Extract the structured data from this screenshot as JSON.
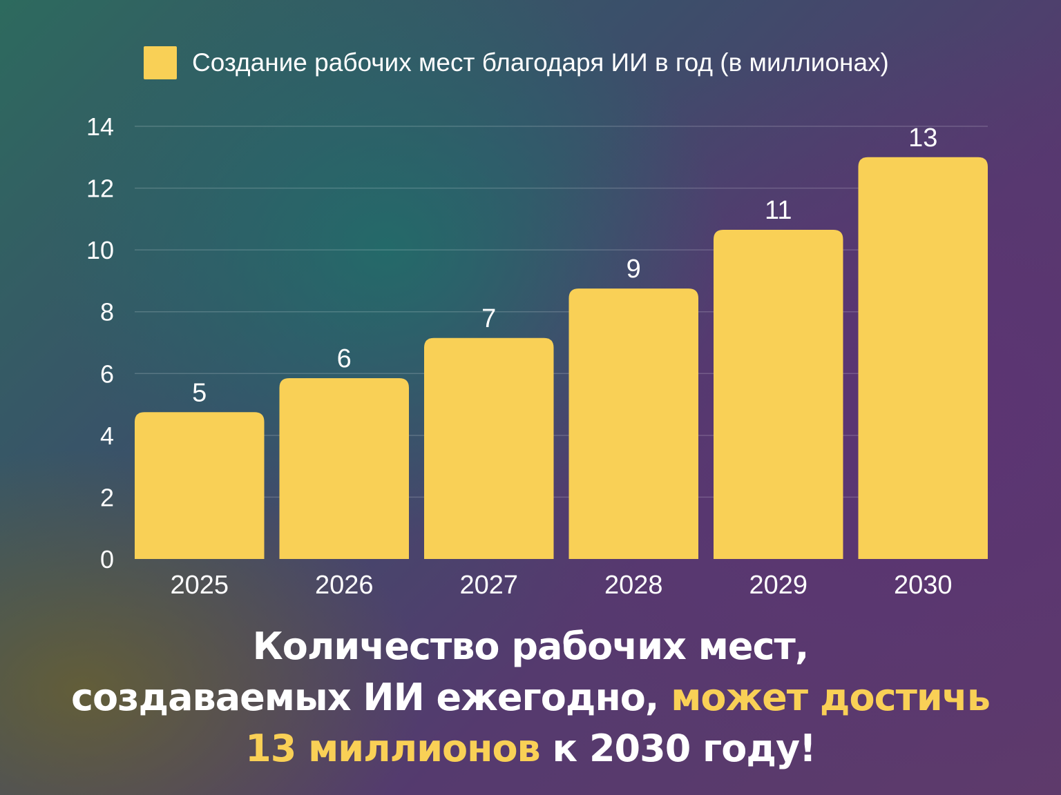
{
  "chart_data": {
    "type": "bar",
    "categories": [
      "2025",
      "2026",
      "2027",
      "2028",
      "2029",
      "2030"
    ],
    "values": [
      4.75,
      5.85,
      7.15,
      8.75,
      10.65,
      13.0
    ],
    "data_labels": [
      "5",
      "6",
      "7",
      "9",
      "11",
      "13"
    ],
    "legend": "Создание рабочих мест благодаря ИИ в год (в миллионах)",
    "legend_position": "top",
    "ylim": [
      0,
      14
    ],
    "yticks": [
      0,
      2,
      4,
      6,
      8,
      10,
      12,
      14
    ],
    "grid": true,
    "bar_color": "#F9D056"
  },
  "headline": {
    "line1": "Количество рабочих мест,",
    "line2_plain": "создаваемых ИИ ежегодно, ",
    "line2_accent": "может достичь",
    "line3_accent": "13 миллионов",
    "line3_plain": " к 2030 году!"
  },
  "colors": {
    "accent": "#F9D056",
    "text": "#FFFFFF"
  }
}
